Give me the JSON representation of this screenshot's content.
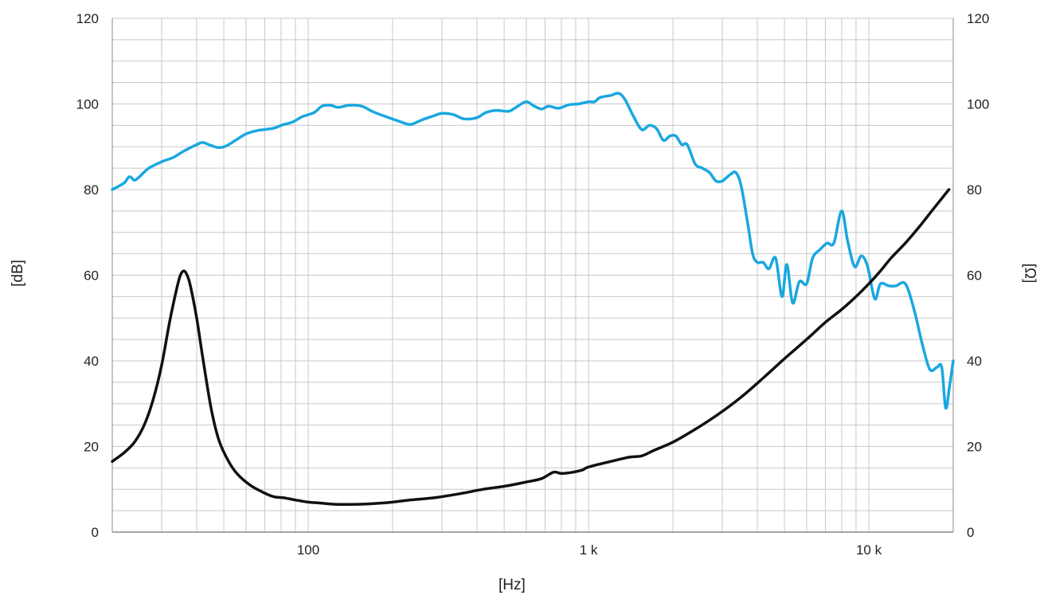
{
  "chart_data": {
    "type": "line",
    "title": "",
    "xlabel": "[Hz]",
    "ylabel_left": "[dB]",
    "ylabel_right": "[Ω]",
    "x_scale": "log",
    "xlim": [
      20,
      20000
    ],
    "ylim_left": [
      0,
      120
    ],
    "ylim_right": [
      0,
      120
    ],
    "grid": true,
    "x_ticks": [
      {
        "value": 100,
        "label": "100"
      },
      {
        "value": 1000,
        "label": "1 k"
      },
      {
        "value": 10000,
        "label": "10 k"
      }
    ],
    "y_ticks_left": [
      "0",
      "20",
      "40",
      "60",
      "80",
      "100",
      "120"
    ],
    "y_ticks_right": [
      "0",
      "20",
      "40",
      "60",
      "80",
      "100",
      "120"
    ],
    "series": [
      {
        "axis": "left",
        "color": "#1aa7e0",
        "points": [
          [
            20,
            80
          ],
          [
            22,
            81.5
          ],
          [
            23,
            83
          ],
          [
            24,
            82.2
          ],
          [
            25,
            83
          ],
          [
            27,
            85
          ],
          [
            30,
            86.5
          ],
          [
            33,
            87.5
          ],
          [
            36,
            89
          ],
          [
            40,
            90.5
          ],
          [
            42,
            91
          ],
          [
            45,
            90.3
          ],
          [
            48,
            89.8
          ],
          [
            51,
            90.2
          ],
          [
            55,
            91.5
          ],
          [
            60,
            93
          ],
          [
            66,
            93.8
          ],
          [
            75,
            94.3
          ],
          [
            80,
            95
          ],
          [
            88,
            95.8
          ],
          [
            95,
            97
          ],
          [
            105,
            98
          ],
          [
            112,
            99.5
          ],
          [
            120,
            99.7
          ],
          [
            128,
            99.2
          ],
          [
            140,
            99.7
          ],
          [
            155,
            99.5
          ],
          [
            170,
            98.2
          ],
          [
            190,
            97
          ],
          [
            210,
            96
          ],
          [
            230,
            95.2
          ],
          [
            245,
            95.8
          ],
          [
            260,
            96.5
          ],
          [
            280,
            97.2
          ],
          [
            300,
            97.8
          ],
          [
            330,
            97.5
          ],
          [
            360,
            96.5
          ],
          [
            400,
            96.8
          ],
          [
            430,
            98
          ],
          [
            470,
            98.5
          ],
          [
            520,
            98.3
          ],
          [
            560,
            99.5
          ],
          [
            600,
            100.5
          ],
          [
            640,
            99.5
          ],
          [
            680,
            98.8
          ],
          [
            720,
            99.5
          ],
          [
            780,
            99
          ],
          [
            850,
            99.8
          ],
          [
            920,
            100
          ],
          [
            1000,
            100.5
          ],
          [
            1050,
            100.5
          ],
          [
            1100,
            101.5
          ],
          [
            1200,
            102
          ],
          [
            1280,
            102.5
          ],
          [
            1350,
            101
          ],
          [
            1450,
            97
          ],
          [
            1550,
            94
          ],
          [
            1650,
            95
          ],
          [
            1750,
            94.2
          ],
          [
            1850,
            91.5
          ],
          [
            1950,
            92.5
          ],
          [
            2050,
            92.5
          ],
          [
            2150,
            90.5
          ],
          [
            2250,
            90.5
          ],
          [
            2400,
            86
          ],
          [
            2550,
            85
          ],
          [
            2700,
            84
          ],
          [
            2850,
            82
          ],
          [
            3000,
            82
          ],
          [
            3200,
            83.5
          ],
          [
            3350,
            84
          ],
          [
            3500,
            81
          ],
          [
            3700,
            72
          ],
          [
            3850,
            65
          ],
          [
            4000,
            63
          ],
          [
            4200,
            63
          ],
          [
            4400,
            61.5
          ],
          [
            4650,
            64
          ],
          [
            4900,
            55
          ],
          [
            5100,
            62.5
          ],
          [
            5350,
            53.5
          ],
          [
            5650,
            58.5
          ],
          [
            6000,
            58
          ],
          [
            6300,
            64
          ],
          [
            6700,
            66
          ],
          [
            7100,
            67.5
          ],
          [
            7500,
            67.5
          ],
          [
            8000,
            75
          ],
          [
            8400,
            68
          ],
          [
            8900,
            62
          ],
          [
            9400,
            64.5
          ],
          [
            9900,
            62
          ],
          [
            10500,
            54.5
          ],
          [
            11000,
            58
          ],
          [
            11800,
            57.5
          ],
          [
            12500,
            57.5
          ],
          [
            13500,
            58
          ],
          [
            14500,
            52
          ],
          [
            15500,
            44
          ],
          [
            16500,
            38
          ],
          [
            17500,
            38.5
          ],
          [
            18200,
            38.5
          ],
          [
            18800,
            29
          ],
          [
            19400,
            34
          ],
          [
            20000,
            40
          ]
        ]
      },
      {
        "axis": "right",
        "color": "#111111",
        "points": [
          [
            20,
            16.5
          ],
          [
            22,
            18.5
          ],
          [
            24,
            21
          ],
          [
            26,
            25
          ],
          [
            28,
            31
          ],
          [
            30,
            39
          ],
          [
            32,
            49
          ],
          [
            34,
            57
          ],
          [
            35,
            60
          ],
          [
            36,
            61
          ],
          [
            37,
            60
          ],
          [
            38,
            57.5
          ],
          [
            40,
            50
          ],
          [
            42,
            41
          ],
          [
            45,
            29
          ],
          [
            48,
            21.5
          ],
          [
            52,
            16.5
          ],
          [
            56,
            13.5
          ],
          [
            62,
            11
          ],
          [
            68,
            9.5
          ],
          [
            75,
            8.3
          ],
          [
            82,
            8
          ],
          [
            90,
            7.5
          ],
          [
            100,
            7
          ],
          [
            110,
            6.8
          ],
          [
            125,
            6.5
          ],
          [
            150,
            6.5
          ],
          [
            175,
            6.7
          ],
          [
            200,
            7
          ],
          [
            230,
            7.5
          ],
          [
            280,
            8
          ],
          [
            350,
            9
          ],
          [
            420,
            10
          ],
          [
            500,
            10.7
          ],
          [
            600,
            11.7
          ],
          [
            680,
            12.5
          ],
          [
            750,
            14
          ],
          [
            800,
            13.7
          ],
          [
            880,
            14
          ],
          [
            950,
            14.5
          ],
          [
            1000,
            15.2
          ],
          [
            1200,
            16.5
          ],
          [
            1400,
            17.5
          ],
          [
            1550,
            17.8
          ],
          [
            1700,
            19
          ],
          [
            2000,
            21
          ],
          [
            2400,
            24
          ],
          [
            2900,
            27.5
          ],
          [
            3500,
            31.5
          ],
          [
            4200,
            36
          ],
          [
            5000,
            40.5
          ],
          [
            6000,
            45
          ],
          [
            7000,
            49
          ],
          [
            8000,
            52
          ],
          [
            9000,
            55
          ],
          [
            10000,
            58
          ],
          [
            11000,
            61
          ],
          [
            12000,
            64
          ],
          [
            13500,
            67.5
          ],
          [
            15000,
            71
          ],
          [
            17000,
            75.5
          ],
          [
            18500,
            78.5
          ],
          [
            19300,
            80
          ]
        ]
      }
    ]
  }
}
